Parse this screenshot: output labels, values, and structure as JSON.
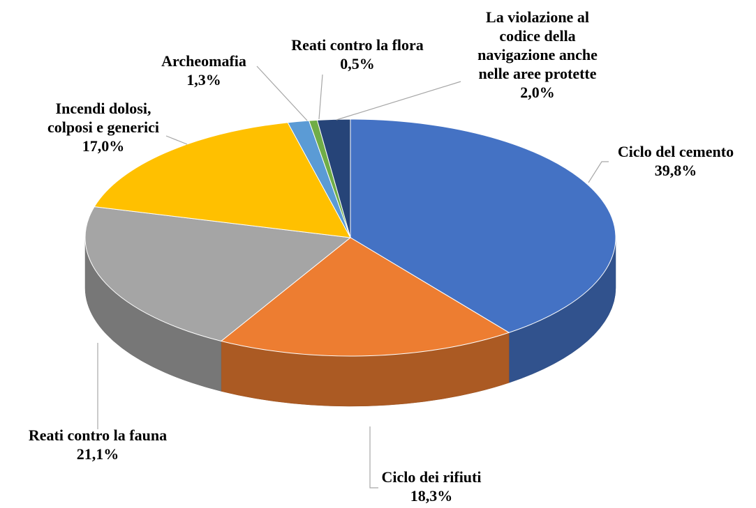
{
  "chart_data": {
    "type": "pie3d",
    "categories": [
      "Ciclo del cemento",
      "Ciclo dei rifiuti",
      "Reati contro la fauna",
      "Incendi dolosi,\ncolposi e generici",
      "Archeomafia",
      "Reati contro la flora",
      "La violazione al\ncodice della\nnavigazione anche\nnelle aree protette"
    ],
    "values": [
      39.8,
      18.3,
      21.1,
      17.0,
      1.3,
      0.5,
      2.0
    ],
    "value_labels": [
      "39,8%",
      "18,3%",
      "21,1%",
      "17,0%",
      "1,3%",
      "0,5%",
      "2,0%"
    ],
    "colors": [
      "#4472c4",
      "#ed7d31",
      "#a5a5a5",
      "#ffc000",
      "#5b9bd5",
      "#70ad47",
      "#264478"
    ]
  }
}
